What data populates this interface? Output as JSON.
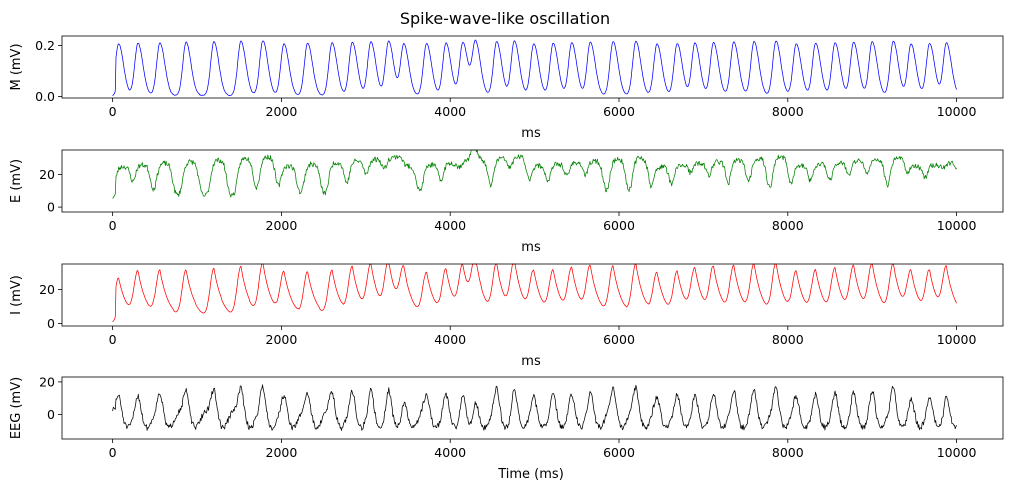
{
  "figure": {
    "title": "Spike-wave-like oscillation"
  },
  "chart_data": [
    {
      "type": "line",
      "ylabel": "M (mV)",
      "xlabel": "ms",
      "xlim": [
        -600,
        10550
      ],
      "ylim": [
        -0.006,
        0.237
      ],
      "xticks": [
        0,
        2000,
        4000,
        6000,
        8000,
        10000
      ],
      "yticks": [
        0.0,
        0.2
      ],
      "ytick_labels": [
        "0.0",
        "0.2"
      ],
      "color": "#0000ff",
      "grid": false,
      "series": [
        {
          "kind": "pulse",
          "base": 0.002,
          "peak": 0.212,
          "peak_var": 0.006,
          "rise_w": 38,
          "fall_w": 58,
          "noise": 0.0008,
          "pre_noise": 0.004,
          "seed": 11
        }
      ]
    },
    {
      "type": "line",
      "ylabel": "E (mV)",
      "xlabel": "ms",
      "xlim": [
        -600,
        10550
      ],
      "ylim": [
        -3.0,
        35.0
      ],
      "xticks": [
        0,
        2000,
        4000,
        6000,
        8000,
        10000
      ],
      "yticks": [
        0,
        20
      ],
      "ytick_labels": [
        "0",
        "20"
      ],
      "color": "#008000",
      "grid": false,
      "series": [
        {
          "kind": "plateau",
          "base": 6,
          "peak": 28,
          "peak_var": 3,
          "noise": 1.6,
          "seed": 23
        }
      ]
    },
    {
      "type": "line",
      "ylabel": "I (mV)",
      "xlabel": "ms",
      "xlim": [
        -600,
        10550
      ],
      "ylim": [
        -1.5,
        35.0
      ],
      "xticks": [
        0,
        2000,
        4000,
        6000,
        8000,
        10000
      ],
      "yticks": [
        0,
        20
      ],
      "ytick_labels": [
        "0",
        "20"
      ],
      "color": "#ff0000",
      "grid": false,
      "series": [
        {
          "kind": "decay",
          "base": 1.0,
          "peak": 30,
          "peak_var": 3,
          "rise_w": 45,
          "fall_w": 110,
          "noise": 0.05,
          "seed": 37
        }
      ]
    },
    {
      "type": "line",
      "ylabel": "EEG (mV)",
      "xlabel": "Time (ms)",
      "xlim": [
        -600,
        10550
      ],
      "ylim": [
        -15.0,
        23.0
      ],
      "xticks": [
        0,
        2000,
        4000,
        6000,
        8000,
        10000
      ],
      "yticks": [
        0,
        20
      ],
      "ytick_labels": [
        "0",
        "20"
      ],
      "color": "#000000",
      "grid": false,
      "series": [
        {
          "kind": "spikewave",
          "base": 3,
          "peak": 16,
          "peak_var": 3,
          "trough": -8,
          "noise": 1.8,
          "seed": 51
        }
      ]
    }
  ],
  "events_ms": [
    70,
    300,
    560,
    870,
    1200,
    1520,
    1780,
    2030,
    2310,
    2600,
    2840,
    3060,
    3270,
    3450,
    3720,
    3950,
    4150,
    4300,
    4550,
    4760,
    4990,
    5220,
    5440,
    5660,
    5930,
    6200,
    6450,
    6690,
    6900,
    7120,
    7360,
    7600,
    7860,
    8100,
    8330,
    8560,
    8780,
    9000,
    9250,
    9460,
    9680,
    9880
  ]
}
